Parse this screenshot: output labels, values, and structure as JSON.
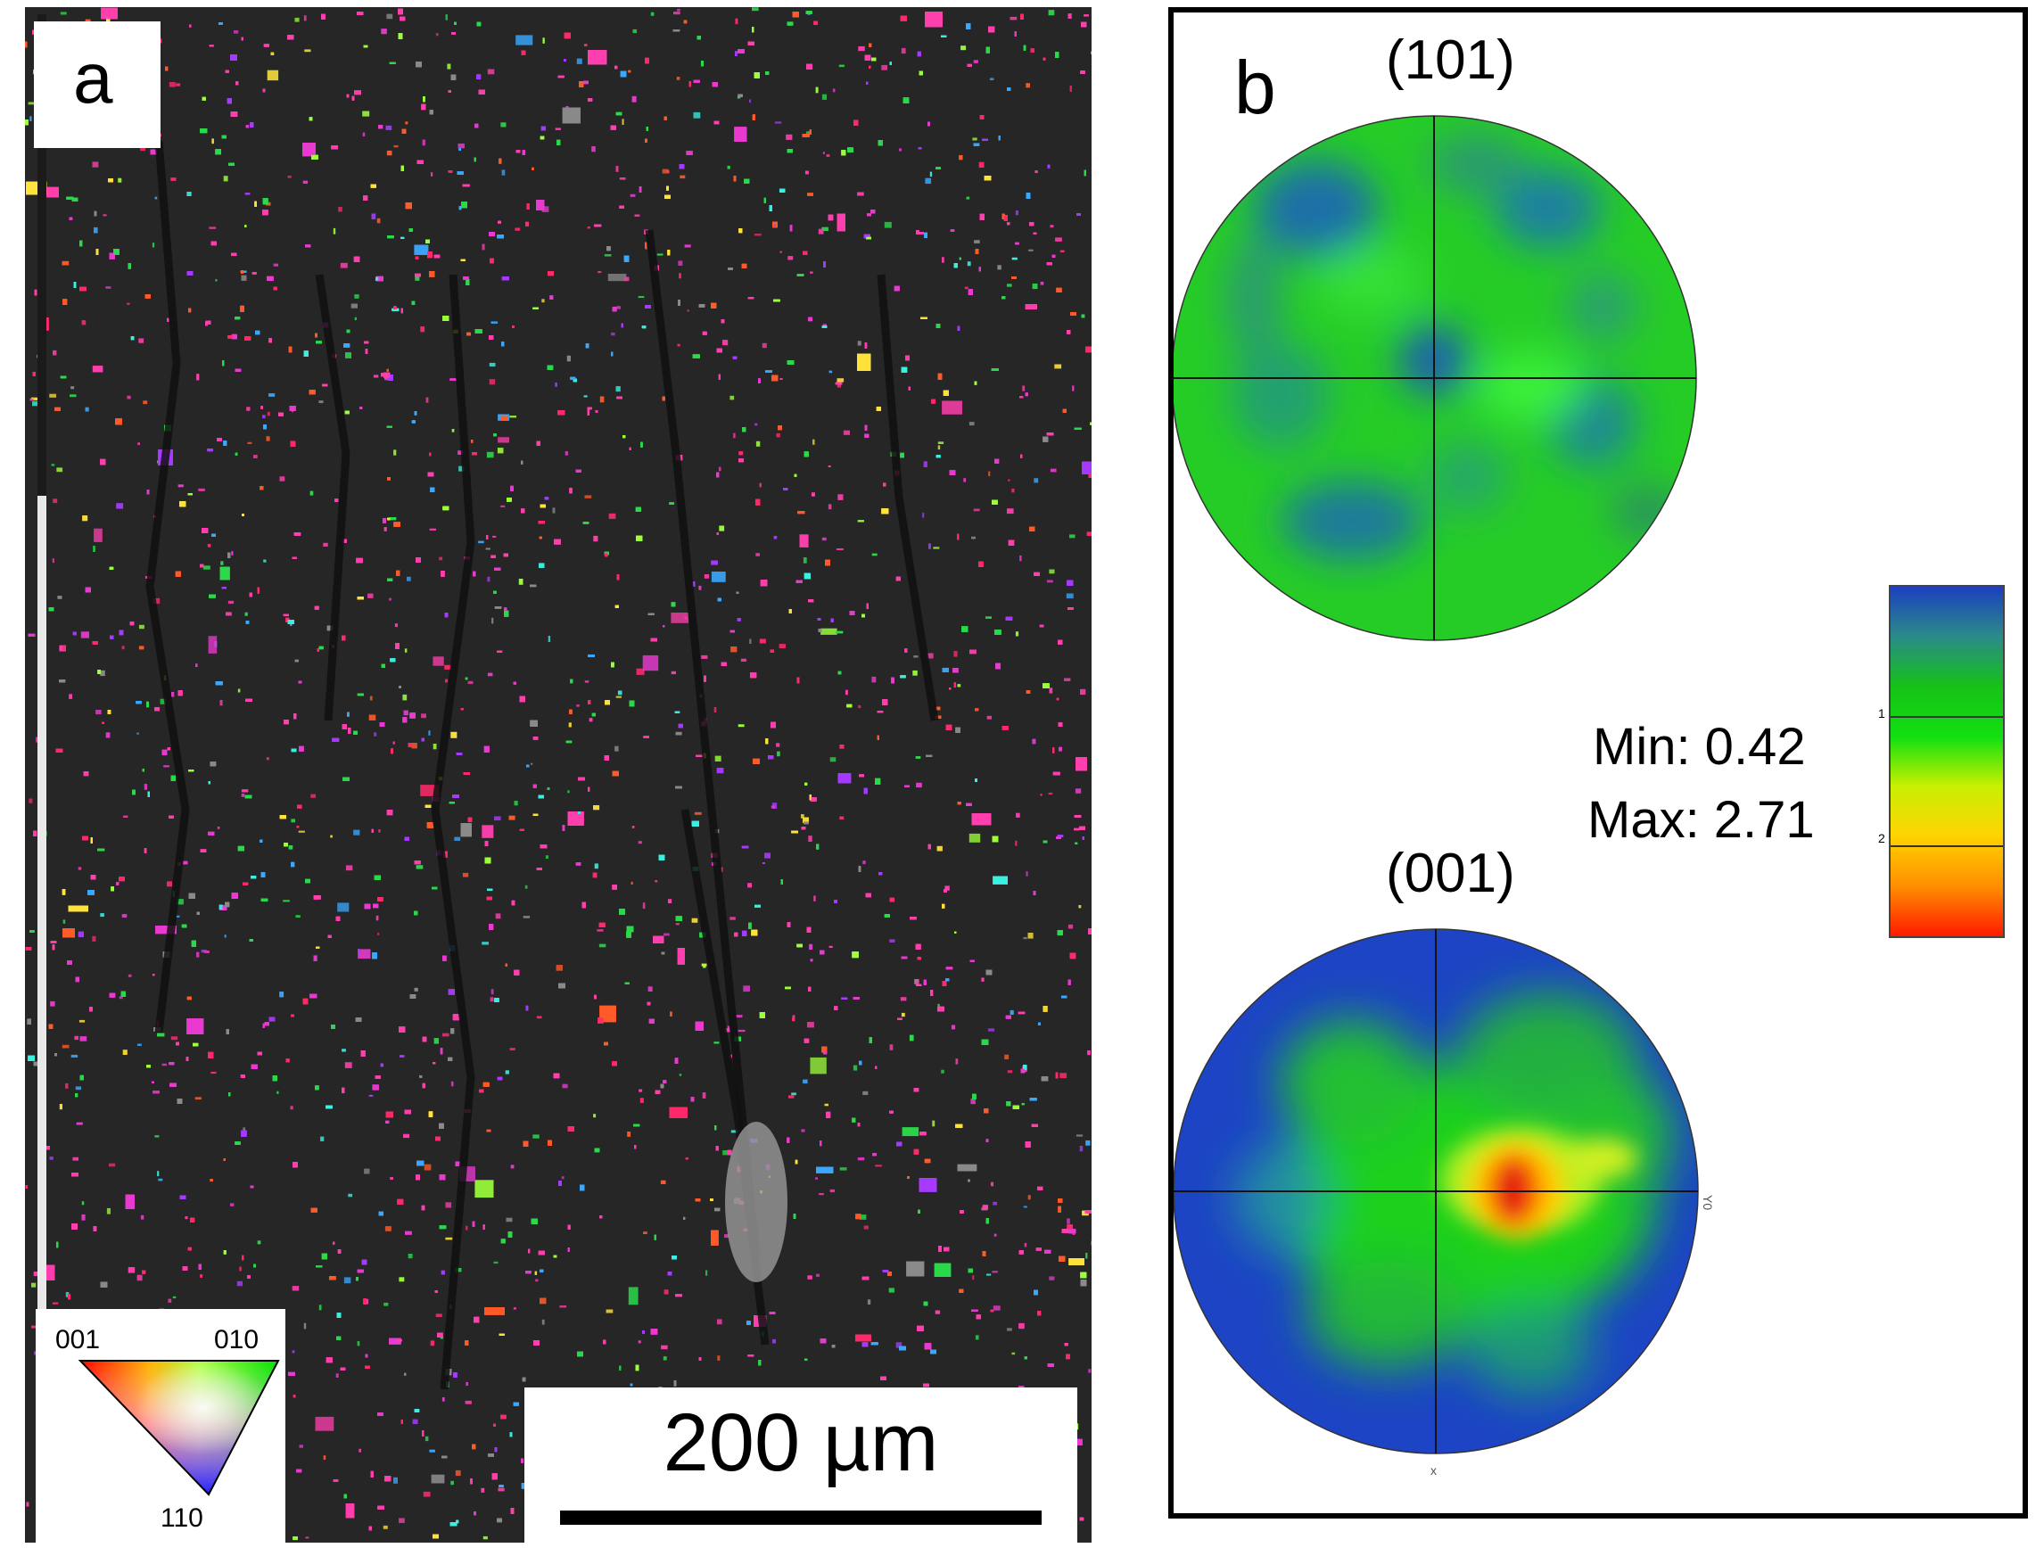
{
  "panel_a": {
    "letter": "a",
    "ipf_key": {
      "corner_001": "001",
      "corner_010": "010",
      "corner_110": "110"
    },
    "scale_bar": {
      "label": "200 µm"
    }
  },
  "panel_b": {
    "letter": "b",
    "pole_figure_1": {
      "title": "(101)"
    },
    "pole_figure_2": {
      "title": "(001)"
    },
    "stats": {
      "min_label": "Min: 0.42",
      "max_label": "Max: 2.71"
    },
    "colorbar": {
      "tick_labels": [
        "1",
        "2"
      ],
      "colors": [
        "#1c3fbf",
        "#2a8a8a",
        "#16c216",
        "#12e012",
        "#c8f000",
        "#ffd400",
        "#ff8c00",
        "#ff1a00"
      ]
    }
  },
  "colors": {
    "ebsd_hues": [
      "#ff3fae",
      "#e83ad0",
      "#2bd94a",
      "#ff5a2a",
      "#ffe23a",
      "#3aa8ff",
      "#a63aff",
      "#ff2a6a",
      "#3af0e0",
      "#9cff3a"
    ],
    "pf_blue": "#1f3fbf",
    "pf_green": "#22d222",
    "pf_red": "#e01010"
  }
}
